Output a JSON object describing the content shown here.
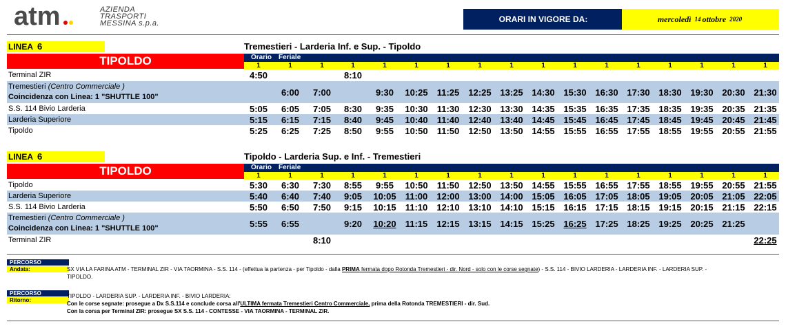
{
  "header": {
    "logo_text": "atm",
    "company_line1": "AZIENDA",
    "company_line2": "TRASPORTI",
    "company_line3": "MESSINA s.p.a.",
    "orari_label": "ORARI IN VIGORE DA:",
    "date_day": "mercoledì",
    "date_num": "14",
    "date_month": "ottobre",
    "date_year": "2020"
  },
  "colors": {
    "navy": "#002060",
    "yellow": "#ffff00",
    "red": "#ff0000",
    "blue_row": "#b8cce4"
  },
  "sections": [
    {
      "linea_label": "LINEA",
      "linea_num": "6",
      "route_title": "Tremestieri - Larderia Inf. e Sup. - Tipoldo",
      "destination": "TIPOLDO",
      "orario_label": "Orario",
      "feriale_label": "Feriale",
      "run_marks": [
        "1",
        "1",
        "1",
        "1",
        "1",
        "1",
        "1",
        "1",
        "1",
        "1",
        "1",
        "1",
        "1",
        "1",
        "1",
        "1",
        "1"
      ],
      "rows": [
        {
          "label": "Terminal ZIR",
          "times": [
            "4:50",
            "",
            "",
            "8:10",
            "",
            "",
            "",
            "",
            "",
            "",
            "",
            "",
            "",
            "",
            "",
            "",
            ""
          ]
        },
        {
          "label": "Tremestieri",
          "label_italic": "(Centro Commerciale )",
          "sub_label": "Coincidenza con Linea: 1 \"SHUTTLE 100\"",
          "times": [
            "",
            "6:00",
            "7:00",
            "",
            "9:30",
            "10:25",
            "11:25",
            "12:25",
            "13:25",
            "14:30",
            "15:30",
            "16:30",
            "17:30",
            "18:30",
            "19:30",
            "20:30",
            "21:30"
          ]
        },
        {
          "label": "S.S. 114 Bivio Larderia",
          "times": [
            "5:05",
            "6:05",
            "7:05",
            "8:30",
            "9:35",
            "10:30",
            "11:30",
            "12:30",
            "13:30",
            "14:35",
            "15:35",
            "16:35",
            "17:35",
            "18:35",
            "19:35",
            "20:35",
            "21:35"
          ]
        },
        {
          "label": "Larderia Superiore",
          "times": [
            "5:15",
            "6:15",
            "7:15",
            "8:40",
            "9:45",
            "10:40",
            "11:40",
            "12:40",
            "13:40",
            "14:45",
            "15:45",
            "16:45",
            "17:45",
            "18:45",
            "19:45",
            "20:45",
            "21:45"
          ]
        },
        {
          "label": "Tipoldo",
          "times": [
            "5:25",
            "6:25",
            "7:25",
            "8:50",
            "9:55",
            "10:50",
            "11:50",
            "12:50",
            "13:50",
            "14:55",
            "15:55",
            "16:55",
            "17:55",
            "18:55",
            "19:55",
            "20:55",
            "21:55"
          ]
        }
      ]
    },
    {
      "linea_label": "LINEA",
      "linea_num": "6",
      "route_title": "Tipoldo - Larderia Sup. e Inf. - Tremestieri",
      "destination": "TIPOLDO",
      "orario_label": "Orario",
      "feriale_label": "Feriale",
      "run_marks": [
        "1",
        "1",
        "1",
        "1",
        "1",
        "1",
        "1",
        "1",
        "1",
        "1",
        "1",
        "1",
        "1",
        "1",
        "1",
        "1",
        "1"
      ],
      "rows": [
        {
          "label": "Tipoldo",
          "times": [
            "5:30",
            "6:30",
            "7:30",
            "8:55",
            "9:55",
            "10:50",
            "11:50",
            "12:50",
            "13:50",
            "14:55",
            "15:55",
            "16:55",
            "17:55",
            "18:55",
            "19:55",
            "20:55",
            "21:55"
          ]
        },
        {
          "label": "Larderia Superiore",
          "times": [
            "5:40",
            "6:40",
            "7:40",
            "9:05",
            "10:05",
            "11:00",
            "12:00",
            "13:00",
            "14:00",
            "15:05",
            "16:05",
            "17:05",
            "18:05",
            "19:05",
            "20:05",
            "21:05",
            "22:05"
          ]
        },
        {
          "label": "S.S. 114 Bivio Larderia",
          "times": [
            "5:50",
            "6:50",
            "7:50",
            "9:15",
            "10:15",
            "11:10",
            "12:10",
            "13:10",
            "14:10",
            "15:15",
            "16:15",
            "17:15",
            "18:15",
            "19:15",
            "20:15",
            "21:15",
            "22:15"
          ]
        },
        {
          "label": "Tremestieri",
          "label_italic": "(Centro Commerciale )",
          "sub_label": "Coincidenza con Linea: 1 \"SHUTTLE 100\"",
          "times": [
            "5:55",
            "6:55",
            "",
            "9:20",
            "10:20",
            "11:15",
            "12:15",
            "13:15",
            "14:15",
            "15:25",
            "16:25",
            "17:25",
            "18:25",
            "19:25",
            "20:25",
            "21:25",
            ""
          ]
        },
        {
          "label": "Terminal ZIR",
          "times": [
            "",
            "",
            "8:10",
            "",
            "",
            "",
            "",
            "",
            "",
            "",
            "",
            "",
            "",
            "",
            "",
            "",
            "22:25"
          ]
        }
      ]
    }
  ],
  "percorso": {
    "tag": "PERCORSO",
    "andata_label": "Andata:",
    "andata_text_1": "SX VIA LA FARINA ATM - TERMINAL ZIR - VIA TAORMINA - S.S. 114 - (effettua la partenza - per Tipoldo - dalla ",
    "andata_text_prima": "PRIMA",
    "andata_text_2": " fermata dopo Rotonda Tremestieri - dir. Nord - solo con le corse segnate",
    "andata_text_3": ") - S.S. 114 - BIVIO LARDERIA - LARDERIA INF. - LARDERIA SUP. -",
    "andata_text_4": "TIPOLDO.",
    "ritorno_label": "Ritorno:",
    "ritorno_text_1": "TIPOLDO - LARDERIA SUP. - LARDERIA INF. - BIVIO LARDERIA:",
    "ritorno_text_2a": "Con le corse segnate: prosegue a Dx S.S.114 e conclude corsa all'",
    "ritorno_text_2b": "ULTIMA fermata Tremestieri Centro Commerciale,",
    "ritorno_text_2c": " prima della Rotonda TREMESTIERI - dir. Sud.",
    "ritorno_text_3": "Con la corsa per Terminal ZIR: prosegue SX S.S. 114 - CONTESSE - VIA TAORMINA - TERMINAL ZIR."
  }
}
